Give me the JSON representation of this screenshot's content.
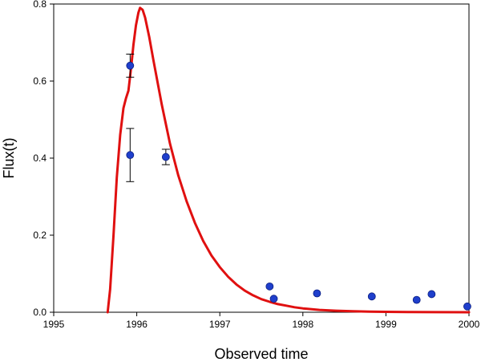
{
  "chart_data": {
    "type": "scatter",
    "title": "",
    "xlabel": "Observed time",
    "ylabel": "Flux(t)",
    "xlim": [
      1995,
      2000
    ],
    "ylim": [
      0.0,
      0.8
    ],
    "x_ticks": [
      1995,
      1996,
      1997,
      1998,
      1999,
      2000
    ],
    "x_tick_labels": [
      "1995",
      "1996",
      "1997",
      "1998",
      "1999",
      "2000"
    ],
    "y_ticks": [
      0.0,
      0.2,
      0.4,
      0.6,
      0.8
    ],
    "y_tick_labels": [
      "0.0",
      "0.2",
      "0.4",
      "0.6",
      "0.8"
    ],
    "grid": false,
    "legend": "none",
    "colors": {
      "points": "#1f3fcc",
      "curve": "#e01010",
      "errorbars": "#000000",
      "axes": "#000000"
    },
    "series": [
      {
        "type": "scatter",
        "points": [
          {
            "x": 1995.92,
            "y": 0.64,
            "err_low": 0.61,
            "err_high": 0.67
          },
          {
            "x": 1995.92,
            "y": 0.408,
            "err_low": 0.339,
            "err_high": 0.477
          },
          {
            "x": 1996.35,
            "y": 0.403,
            "err_low": 0.383,
            "err_high": 0.423
          },
          {
            "x": 1997.6,
            "y": 0.067
          },
          {
            "x": 1997.65,
            "y": 0.035
          },
          {
            "x": 1998.17,
            "y": 0.049
          },
          {
            "x": 1998.83,
            "y": 0.041
          },
          {
            "x": 1999.37,
            "y": 0.032
          },
          {
            "x": 1999.55,
            "y": 0.047
          },
          {
            "x": 1999.98,
            "y": 0.015
          }
        ]
      },
      {
        "type": "line",
        "points": [
          [
            1995.65,
            0.0
          ],
          [
            1995.68,
            0.06
          ],
          [
            1995.72,
            0.2
          ],
          [
            1995.76,
            0.35
          ],
          [
            1995.8,
            0.46
          ],
          [
            1995.84,
            0.53
          ],
          [
            1995.87,
            0.555
          ],
          [
            1995.9,
            0.575
          ],
          [
            1995.93,
            0.63
          ],
          [
            1995.96,
            0.695
          ],
          [
            1995.99,
            0.745
          ],
          [
            1996.02,
            0.778
          ],
          [
            1996.04,
            0.79
          ],
          [
            1996.07,
            0.785
          ],
          [
            1996.1,
            0.765
          ],
          [
            1996.15,
            0.715
          ],
          [
            1996.2,
            0.655
          ],
          [
            1996.3,
            0.54
          ],
          [
            1996.4,
            0.438
          ],
          [
            1996.5,
            0.355
          ],
          [
            1996.6,
            0.288
          ],
          [
            1996.7,
            0.232
          ],
          [
            1996.8,
            0.185
          ],
          [
            1996.9,
            0.147
          ],
          [
            1997.0,
            0.117
          ],
          [
            1997.1,
            0.092
          ],
          [
            1997.2,
            0.072
          ],
          [
            1997.3,
            0.056
          ],
          [
            1997.4,
            0.044
          ],
          [
            1997.5,
            0.034
          ],
          [
            1997.6,
            0.027
          ],
          [
            1997.7,
            0.021
          ],
          [
            1997.8,
            0.017
          ],
          [
            1997.9,
            0.013
          ],
          [
            1998.0,
            0.01
          ],
          [
            1998.2,
            0.006
          ],
          [
            1998.4,
            0.004
          ],
          [
            1998.6,
            0.0025
          ],
          [
            1998.8,
            0.0015
          ],
          [
            1999.0,
            0.001
          ],
          [
            1999.3,
            0.0005
          ],
          [
            1999.6,
            0.0003
          ],
          [
            2000.0,
            0.0001
          ]
        ]
      }
    ]
  }
}
